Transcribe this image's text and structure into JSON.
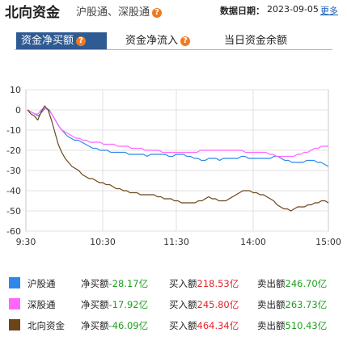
{
  "header": {
    "title": "北向资金",
    "subtitle": "沪股通、深股通",
    "date_label": "数据日期：",
    "date_value": "2023-09-05",
    "more": "更多"
  },
  "tabs": [
    {
      "label": "资金净买额",
      "active": true,
      "help": true
    },
    {
      "label": "资金净流入",
      "active": false,
      "help": true
    },
    {
      "label": "当日资金余额",
      "active": false,
      "help": false
    }
  ],
  "chart_data": {
    "type": "line",
    "x_ticks": [
      "9:30",
      "10:30",
      "11:30",
      "14:00",
      "15:00"
    ],
    "y_ticks": [
      10,
      0,
      -10,
      -20,
      -30,
      -40,
      -50,
      -60
    ],
    "ylim": [
      -60,
      10
    ],
    "grid": true,
    "colors": {
      "hgt": "#2f86eb",
      "sgt": "#ff66ff",
      "north": "#6b4518"
    },
    "series": [
      {
        "key": "hgt",
        "name": "沪股通",
        "values": [
          0,
          -1,
          -2,
          -3,
          -1,
          1,
          0,
          -3,
          -6,
          -9,
          -11,
          -13,
          -14,
          -15,
          -15,
          -16,
          -17,
          -18,
          -19,
          -19,
          -20,
          -20,
          -20,
          -21,
          -21,
          -21,
          -21,
          -21,
          -22,
          -22,
          -22,
          -22,
          -22,
          -23,
          -22,
          -22,
          -22,
          -22,
          -22,
          -23,
          -23,
          -22,
          -22,
          -22,
          -23,
          -23,
          -24,
          -24,
          -25,
          -25,
          -24,
          -24,
          -24,
          -25,
          -24,
          -24,
          -24,
          -24,
          -24,
          -23,
          -23,
          -24,
          -24,
          -24,
          -24,
          -24,
          -24,
          -24,
          -23,
          -23,
          -24,
          -25,
          -25,
          -26,
          -26,
          -26,
          -26,
          -25,
          -25,
          -25,
          -26,
          -26,
          -27,
          -28
        ]
      },
      {
        "key": "sgt",
        "name": "深股通",
        "values": [
          0,
          -1,
          -2,
          -2,
          0,
          1,
          0,
          -2,
          -5,
          -8,
          -10,
          -11,
          -12,
          -13,
          -14,
          -14,
          -15,
          -15,
          -16,
          -16,
          -16,
          -16,
          -17,
          -17,
          -17,
          -17,
          -18,
          -18,
          -18,
          -18,
          -19,
          -19,
          -19,
          -19,
          -20,
          -20,
          -20,
          -20,
          -20,
          -21,
          -21,
          -21,
          -21,
          -21,
          -21,
          -21,
          -21,
          -21,
          -21,
          -21,
          -20,
          -20,
          -20,
          -20,
          -20,
          -20,
          -20,
          -20,
          -20,
          -20,
          -20,
          -20,
          -20,
          -21,
          -21,
          -21,
          -21,
          -21,
          -21,
          -21,
          -22,
          -22,
          -23,
          -23,
          -23,
          -23,
          -23,
          -23,
          -22,
          -22,
          -21,
          -21,
          -20,
          -19,
          -19,
          -18,
          -18,
          -18
        ]
      },
      {
        "key": "north",
        "name": "北向资金",
        "values": [
          0,
          -2,
          -3,
          -5,
          -1,
          2,
          0,
          -5,
          -11,
          -17,
          -21,
          -24,
          -26,
          -28,
          -29,
          -30,
          -32,
          -33,
          -34,
          -34,
          -35,
          -36,
          -36,
          -37,
          -37,
          -38,
          -39,
          -39,
          -40,
          -40,
          -41,
          -41,
          -41,
          -42,
          -42,
          -42,
          -42,
          -42,
          -43,
          -43,
          -44,
          -44,
          -44,
          -45,
          -45,
          -46,
          -46,
          -46,
          -46,
          -46,
          -45,
          -45,
          -44,
          -43,
          -44,
          -44,
          -45,
          -45,
          -45,
          -44,
          -43,
          -42,
          -41,
          -40,
          -40,
          -40,
          -41,
          -41,
          -42,
          -42,
          -43,
          -44,
          -45,
          -47,
          -48,
          -49,
          -49,
          -50,
          -49,
          -48,
          -48,
          -48,
          -47,
          -47,
          -46,
          -46,
          -45,
          -45,
          -46
        ]
      }
    ]
  },
  "legend": [
    {
      "key": "hgt",
      "name": "沪股通",
      "net_label": "净买额",
      "net": "-28.17亿",
      "buy_label": "买入额",
      "buy": "218.53亿",
      "sell_label": "卖出额",
      "sell": "246.70亿"
    },
    {
      "key": "sgt",
      "name": "深股通",
      "net_label": "净买额",
      "net": "-17.92亿",
      "buy_label": "买入额",
      "buy": "245.80亿",
      "sell_label": "卖出额",
      "sell": "263.73亿"
    },
    {
      "key": "north",
      "name": "北向资金",
      "net_label": "净买额",
      "net": "-46.09亿",
      "buy_label": "买入额",
      "buy": "464.34亿",
      "sell_label": "卖出额",
      "sell": "510.43亿"
    }
  ]
}
